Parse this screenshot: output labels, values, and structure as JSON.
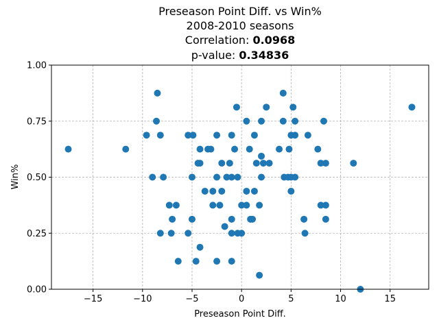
{
  "chart_data": {
    "type": "scatter",
    "title": "Preseason Point Diff. vs Win%",
    "subtitle": "2008-2010 seasons",
    "correlation_label": "Correlation: ",
    "correlation_value": "0.0968",
    "pvalue_label": "p-value: ",
    "pvalue_value": "0.34836",
    "xlabel": "Preseason Point Diff.",
    "ylabel": "Win%",
    "xlim": [
      -19.2,
      18.9
    ],
    "ylim": [
      0,
      1
    ],
    "x_ticks": [
      -15,
      -10,
      -5,
      0,
      5,
      10,
      15
    ],
    "x_tick_labels": [
      "−15",
      "−10",
      "−5",
      "0",
      "5",
      "10",
      "15"
    ],
    "y_ticks": [
      0,
      0.25,
      0.5,
      0.75,
      1.0
    ],
    "y_tick_labels": [
      "0.00",
      "0.25",
      "0.50",
      "0.75",
      "1.00"
    ],
    "grid": true,
    "marker_color": "#1f77b4",
    "points": [
      [
        -17.5,
        0.625
      ],
      [
        -11.7,
        0.625
      ],
      [
        -9.6,
        0.6875
      ],
      [
        -8.5,
        0.875
      ],
      [
        -8.6,
        0.75
      ],
      [
        -8.2,
        0.6875
      ],
      [
        -9.0,
        0.5
      ],
      [
        -7.9,
        0.5
      ],
      [
        -8.2,
        0.25
      ],
      [
        -7.3,
        0.375
      ],
      [
        -6.6,
        0.375
      ],
      [
        -7.0,
        0.3125
      ],
      [
        -7.1,
        0.25
      ],
      [
        -6.4,
        0.125
      ],
      [
        -5.4,
        0.6875
      ],
      [
        -4.9,
        0.6875
      ],
      [
        -5.0,
        0.5
      ],
      [
        -5.4,
        0.25
      ],
      [
        -5.0,
        0.3125
      ],
      [
        -4.6,
        0.125
      ],
      [
        -4.4,
        0.5625
      ],
      [
        -4.2,
        0.5625
      ],
      [
        -4.2,
        0.625
      ],
      [
        -4.2,
        0.1875
      ],
      [
        -3.7,
        0.4375
      ],
      [
        -3.4,
        0.625
      ],
      [
        -3.1,
        0.625
      ],
      [
        -2.9,
        0.4375
      ],
      [
        -2.9,
        0.375
      ],
      [
        -2.5,
        0.6875
      ],
      [
        -2.5,
        0.5
      ],
      [
        -2.5,
        0.125
      ],
      [
        -2.2,
        0.375
      ],
      [
        -2.0,
        0.5625
      ],
      [
        -2.0,
        0.4375
      ],
      [
        -1.7,
        0.28
      ],
      [
        -1.5,
        0.5
      ],
      [
        -1.2,
        0.5625
      ],
      [
        -1.0,
        0.6875
      ],
      [
        -1.0,
        0.5
      ],
      [
        -1.0,
        0.3125
      ],
      [
        -1.0,
        0.25
      ],
      [
        -1.0,
        0.125
      ],
      [
        -0.7,
        0.625
      ],
      [
        -0.5,
        0.8125
      ],
      [
        -0.4,
        0.5
      ],
      [
        -0.4,
        0.25
      ],
      [
        0.0,
        0.375
      ],
      [
        0.0,
        0.25
      ],
      [
        0.5,
        0.75
      ],
      [
        0.5,
        0.4375
      ],
      [
        0.5,
        0.375
      ],
      [
        0.8,
        0.625
      ],
      [
        0.9,
        0.3125
      ],
      [
        1.1,
        0.3125
      ],
      [
        1.3,
        0.6875
      ],
      [
        1.3,
        0.4375
      ],
      [
        1.5,
        0.5625
      ],
      [
        1.8,
        0.375
      ],
      [
        1.8,
        0.0625
      ],
      [
        2.0,
        0.75
      ],
      [
        2.0,
        0.5938
      ],
      [
        2.0,
        0.5
      ],
      [
        2.2,
        0.5625
      ],
      [
        2.5,
        0.8125
      ],
      [
        2.8,
        0.5625
      ],
      [
        3.8,
        0.625
      ],
      [
        4.2,
        0.875
      ],
      [
        4.2,
        0.75
      ],
      [
        4.3,
        0.5
      ],
      [
        4.7,
        0.5
      ],
      [
        4.8,
        0.625
      ],
      [
        5.0,
        0.6875
      ],
      [
        5.0,
        0.4375
      ],
      [
        5.0,
        0.5
      ],
      [
        5.2,
        0.8125
      ],
      [
        5.4,
        0.6875
      ],
      [
        5.4,
        0.75
      ],
      [
        5.4,
        0.5
      ],
      [
        6.3,
        0.3125
      ],
      [
        6.4,
        0.25
      ],
      [
        6.7,
        0.6875
      ],
      [
        7.7,
        0.625
      ],
      [
        8.0,
        0.5625
      ],
      [
        8.0,
        0.375
      ],
      [
        8.3,
        0.75
      ],
      [
        8.5,
        0.5625
      ],
      [
        8.5,
        0.375
      ],
      [
        8.5,
        0.3125
      ],
      [
        11.3,
        0.5625
      ],
      [
        12.0,
        0.0
      ],
      [
        17.2,
        0.8125
      ]
    ]
  }
}
